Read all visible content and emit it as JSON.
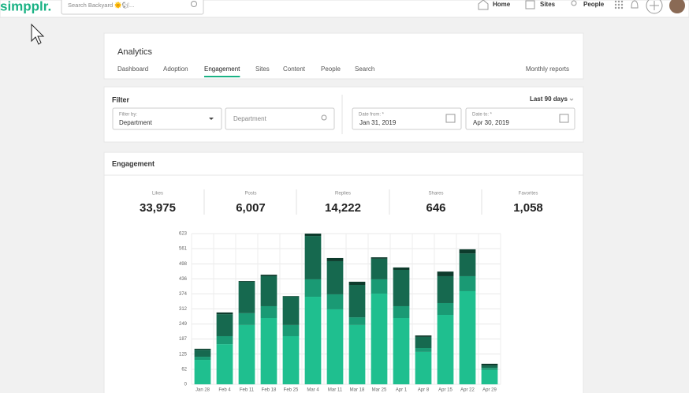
{
  "topbar": {
    "logo": "simpplr.",
    "search": "Search Backyard 🌞🐿...",
    "nav": [
      "Home",
      "Sites",
      "People"
    ]
  },
  "analytics": {
    "title": "Analytics",
    "tabs": [
      "Dashboard",
      "Adoption",
      "Engagement",
      "Sites",
      "Content",
      "People",
      "Search"
    ],
    "active": "Engagement",
    "monthly_reports": "Monthly reports"
  },
  "filter": {
    "title": "Filter",
    "range": "Last 90 days",
    "filter_by_label": "Filter by:",
    "filter_by_value": "Department",
    "department_placeholder": "Department",
    "date_from_label": "Date from: *",
    "date_from": "Jan 31, 2019",
    "date_to_label": "Date to: *",
    "date_to": "Apr 30, 2019"
  },
  "engagement": {
    "title": "Engagement",
    "stats": [
      {
        "label": "Likes",
        "value": "33,975"
      },
      {
        "label": "Posts",
        "value": "6,007"
      },
      {
        "label": "Replies",
        "value": "14,222"
      },
      {
        "label": "Shares",
        "value": "646"
      },
      {
        "label": "Favorites",
        "value": "1,058"
      }
    ]
  },
  "chart_data": {
    "type": "stacked_bar",
    "categories": [
      "Jan 28",
      "Feb 4",
      "Feb 11",
      "Feb 18",
      "Feb 25",
      "Mar 4",
      "Mar 11",
      "Mar 18",
      "Mar 25",
      "Apr 1",
      "Apr 8",
      "Apr 15",
      "Apr 22",
      "Apr 29"
    ],
    "series": [
      {
        "color": "#1fbf8f",
        "values": [
          101,
          166,
          245,
          274,
          199,
          362,
          310,
          245,
          375,
          274,
          134,
          287,
          385,
          59
        ]
      },
      {
        "color": "#1a9a74",
        "values": [
          13,
          33,
          49,
          49,
          46,
          72,
          62,
          32,
          59,
          49,
          16,
          49,
          62,
          9
        ]
      },
      {
        "color": "#16694f",
        "values": [
          29,
          91,
          130,
          124,
          118,
          179,
          137,
          134,
          85,
          150,
          46,
          111,
          94,
          10
        ]
      },
      {
        "color": "#0d3b2c",
        "values": [
          4,
          7,
          3,
          6,
          2,
          10,
          13,
          13,
          6,
          10,
          6,
          19,
          17,
          7
        ]
      }
    ],
    "ylim": [
      0,
      623
    ],
    "yticks": [
      0,
      62,
      125,
      187,
      249,
      312,
      374,
      436,
      498,
      561,
      623
    ],
    "grid": true
  }
}
